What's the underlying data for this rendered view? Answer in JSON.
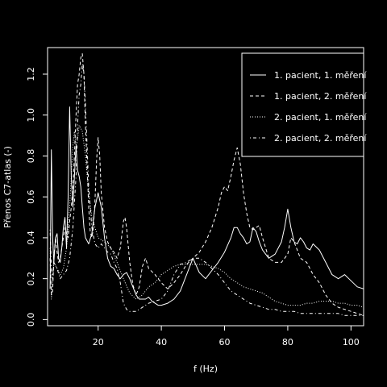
{
  "colors": {
    "background": "#000000",
    "foreground": "#ffffff"
  },
  "chart_data": {
    "type": "line",
    "title": "",
    "xlabel": "f (Hz)",
    "ylabel": "Přenos C7-atlas (-)",
    "xlim": [
      4,
      104
    ],
    "ylim": [
      -0.03,
      1.33
    ],
    "x_ticks": [
      20,
      40,
      60,
      80,
      100
    ],
    "y_ticks": [
      0.0,
      0.2,
      0.4,
      0.6,
      0.8,
      1.0,
      1.2
    ],
    "grid": false,
    "legend_position": "top-right",
    "series": [
      {
        "name": "1. pacient, 1. měření",
        "dash": "solid",
        "x": [
          4.8,
          5.2,
          5.6,
          6,
          6.5,
          7,
          7.5,
          8,
          8.5,
          9,
          9.5,
          10,
          10.5,
          11,
          11.5,
          12,
          12.5,
          13,
          13.5,
          14,
          14.5,
          15,
          15.5,
          16,
          17,
          18,
          19,
          20,
          21,
          22,
          23,
          24,
          25,
          26,
          27,
          28,
          29,
          30,
          31,
          32,
          33,
          34,
          35,
          36,
          37,
          38,
          39,
          40,
          42,
          44,
          46,
          48,
          50,
          52,
          54,
          56,
          58,
          60,
          62,
          63,
          64,
          65,
          66,
          67,
          68,
          69,
          70,
          71,
          72,
          74,
          76,
          78,
          79,
          80,
          81,
          82,
          83,
          84,
          85,
          86,
          87,
          88,
          90,
          92,
          94,
          96,
          98,
          100,
          102,
          104
        ],
        "values": [
          0.15,
          0.83,
          0.4,
          0.28,
          0.4,
          0.42,
          0.3,
          0.28,
          0.35,
          0.45,
          0.5,
          0.35,
          0.6,
          1.04,
          0.7,
          0.55,
          0.7,
          0.85,
          0.73,
          0.7,
          0.65,
          0.55,
          0.45,
          0.4,
          0.37,
          0.42,
          0.55,
          0.62,
          0.55,
          0.4,
          0.3,
          0.26,
          0.25,
          0.22,
          0.2,
          0.22,
          0.23,
          0.2,
          0.16,
          0.12,
          0.1,
          0.1,
          0.1,
          0.11,
          0.09,
          0.08,
          0.07,
          0.07,
          0.08,
          0.1,
          0.14,
          0.22,
          0.3,
          0.23,
          0.2,
          0.24,
          0.28,
          0.33,
          0.4,
          0.45,
          0.45,
          0.42,
          0.4,
          0.37,
          0.38,
          0.45,
          0.43,
          0.38,
          0.34,
          0.3,
          0.32,
          0.38,
          0.45,
          0.54,
          0.45,
          0.38,
          0.37,
          0.4,
          0.38,
          0.35,
          0.34,
          0.37,
          0.34,
          0.28,
          0.22,
          0.2,
          0.22,
          0.19,
          0.16,
          0.15
        ]
      },
      {
        "name": "1. pacient, 2. měření",
        "dash": "dashed",
        "x": [
          4.8,
          5.2,
          5.6,
          6,
          6.5,
          7,
          7.5,
          8,
          8.5,
          9,
          9.5,
          10,
          10.5,
          11,
          11.5,
          12,
          12.5,
          13,
          13.5,
          14,
          14.5,
          15,
          15.5,
          16,
          16.5,
          17,
          17.5,
          18,
          18.5,
          19,
          19.5,
          20,
          20.5,
          21,
          22,
          23,
          24,
          25,
          26,
          27,
          28,
          28.5,
          29,
          30,
          31,
          32,
          33,
          34,
          35,
          36,
          38,
          40,
          42,
          44,
          46,
          48,
          50,
          52,
          54,
          56,
          58,
          59,
          60,
          61,
          62,
          63,
          64,
          65,
          66,
          67,
          68,
          69,
          70,
          71,
          72,
          73,
          74,
          76,
          78,
          80,
          81,
          82,
          84,
          86,
          88,
          90,
          92,
          94,
          96,
          98,
          100,
          102,
          104
        ],
        "values": [
          0.3,
          0.12,
          0.14,
          0.3,
          0.4,
          0.33,
          0.28,
          0.3,
          0.35,
          0.4,
          0.45,
          0.42,
          0.4,
          0.48,
          0.55,
          0.65,
          0.8,
          1.0,
          1.15,
          1.2,
          1.28,
          1.3,
          1.2,
          0.95,
          0.75,
          0.55,
          0.43,
          0.4,
          0.45,
          0.58,
          0.78,
          0.89,
          0.8,
          0.62,
          0.45,
          0.38,
          0.35,
          0.33,
          0.3,
          0.35,
          0.48,
          0.5,
          0.45,
          0.28,
          0.17,
          0.12,
          0.16,
          0.26,
          0.3,
          0.25,
          0.22,
          0.18,
          0.15,
          0.18,
          0.22,
          0.27,
          0.3,
          0.33,
          0.38,
          0.45,
          0.55,
          0.62,
          0.65,
          0.63,
          0.7,
          0.78,
          0.84,
          0.76,
          0.62,
          0.52,
          0.45,
          0.44,
          0.45,
          0.46,
          0.4,
          0.35,
          0.3,
          0.28,
          0.28,
          0.32,
          0.4,
          0.38,
          0.3,
          0.28,
          0.22,
          0.18,
          0.12,
          0.08,
          0.06,
          0.05,
          0.04,
          0.03,
          0.02
        ]
      },
      {
        "name": "2. pacient, 1. měření",
        "dash": "dotted",
        "x": [
          4.8,
          5.2,
          5.6,
          6,
          7,
          8,
          9,
          10,
          11,
          12,
          12.5,
          13,
          13.5,
          14,
          15,
          16,
          17,
          18,
          20,
          22,
          24,
          26,
          28,
          30,
          32,
          34,
          36,
          38,
          40,
          42,
          44,
          46,
          48,
          50,
          52,
          54,
          56,
          58,
          60,
          62,
          64,
          66,
          68,
          70,
          72,
          74,
          76,
          78,
          80,
          82,
          84,
          86,
          88,
          90,
          92,
          94,
          96,
          98,
          100,
          102,
          104
        ],
        "values": [
          0.35,
          0.1,
          0.18,
          0.28,
          0.25,
          0.22,
          0.25,
          0.35,
          0.55,
          0.85,
          0.92,
          0.85,
          0.88,
          0.95,
          0.92,
          0.8,
          0.62,
          0.5,
          0.4,
          0.38,
          0.35,
          0.28,
          0.2,
          0.13,
          0.1,
          0.12,
          0.16,
          0.18,
          0.22,
          0.24,
          0.26,
          0.27,
          0.27,
          0.27,
          0.27,
          0.27,
          0.26,
          0.25,
          0.23,
          0.2,
          0.18,
          0.16,
          0.15,
          0.14,
          0.13,
          0.11,
          0.09,
          0.08,
          0.07,
          0.07,
          0.07,
          0.08,
          0.08,
          0.09,
          0.09,
          0.09,
          0.08,
          0.08,
          0.07,
          0.07,
          0.06
        ]
      },
      {
        "name": "2. pacient, 2. měření",
        "dash": "dotdash",
        "x": [
          4.8,
          5.2,
          5.6,
          6,
          7,
          8,
          9,
          10,
          11,
          12,
          13,
          13.5,
          14,
          14.5,
          15,
          15.5,
          16,
          16.5,
          17,
          18,
          19,
          20,
          21,
          22,
          23,
          24,
          25,
          26,
          27,
          28,
          29,
          30,
          32,
          34,
          36,
          38,
          40,
          42,
          44,
          46,
          48,
          50,
          52,
          54,
          56,
          58,
          60,
          62,
          64,
          66,
          68,
          70,
          72,
          74,
          76,
          78,
          80,
          82,
          84,
          86,
          88,
          90,
          92,
          94,
          96,
          98,
          100,
          102,
          104
        ],
        "values": [
          0.44,
          0.25,
          0.2,
          0.28,
          0.25,
          0.2,
          0.22,
          0.24,
          0.3,
          0.45,
          0.7,
          0.95,
          1.1,
          1.15,
          1.25,
          1.2,
          1.05,
          0.85,
          0.65,
          0.45,
          0.37,
          0.35,
          0.37,
          0.35,
          0.33,
          0.32,
          0.28,
          0.25,
          0.18,
          0.08,
          0.05,
          0.04,
          0.04,
          0.06,
          0.08,
          0.09,
          0.1,
          0.14,
          0.22,
          0.27,
          0.28,
          0.3,
          0.3,
          0.28,
          0.25,
          0.22,
          0.18,
          0.14,
          0.12,
          0.1,
          0.08,
          0.07,
          0.06,
          0.05,
          0.05,
          0.04,
          0.04,
          0.04,
          0.03,
          0.03,
          0.03,
          0.03,
          0.03,
          0.03,
          0.03,
          0.02,
          0.02,
          0.02,
          0.02
        ]
      }
    ]
  }
}
